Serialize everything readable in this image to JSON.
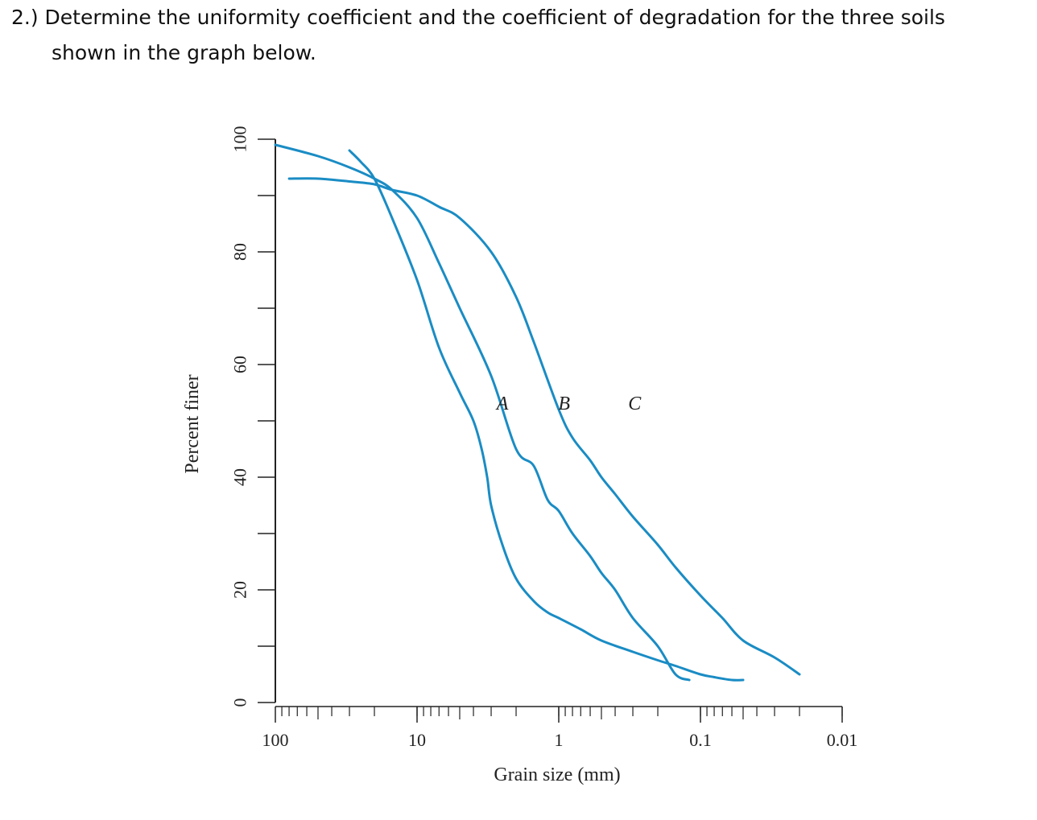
{
  "question": {
    "line1": "2.) Determine the uniformity coefficient and the coefficient of degradation for the three soils",
    "line2": "shown in the graph below."
  },
  "chart_data": {
    "type": "line",
    "title": "",
    "xlabel": "Grain size (mm)",
    "ylabel": "Percent finer",
    "x_scale": "log",
    "x_direction": "decreasing",
    "xlim": [
      100,
      0.01
    ],
    "ylim": [
      0,
      100
    ],
    "x_ticks": [
      "100",
      "10",
      "1",
      "0.1",
      "0.01"
    ],
    "y_ticks": [
      "0",
      "20",
      "40",
      "60",
      "80",
      "100"
    ],
    "grid": false,
    "line_color": "#1a8cc4",
    "series": [
      {
        "name": "A",
        "x": [
          30,
          25,
          20,
          15,
          10,
          7,
          5,
          4,
          3.5,
          3.2,
          3,
          2.5,
          2,
          1.5,
          1.2,
          1,
          0.7,
          0.5,
          0.3,
          0.2,
          0.15,
          0.1,
          0.08,
          0.06,
          0.05
        ],
        "y": [
          98,
          96,
          93,
          86,
          75,
          63,
          55,
          50,
          45,
          40,
          35,
          28,
          22,
          18,
          16,
          15,
          13,
          11,
          9,
          7.5,
          6.5,
          5,
          4.5,
          4,
          4
        ]
      },
      {
        "name": "B",
        "x": [
          100,
          50,
          30,
          20,
          15,
          10,
          7,
          5,
          3,
          2,
          1.5,
          1.2,
          1,
          0.8,
          0.6,
          0.5,
          0.4,
          0.3,
          0.2,
          0.15,
          0.12
        ],
        "y": [
          99,
          97,
          95,
          93,
          91,
          86,
          78,
          70,
          58,
          45,
          42,
          36,
          34,
          30,
          26,
          23,
          20,
          15,
          10,
          5,
          4
        ]
      },
      {
        "name": "C",
        "x": [
          80,
          50,
          30,
          20,
          15,
          10,
          7,
          5,
          3,
          2,
          1.5,
          1,
          0.8,
          0.6,
          0.5,
          0.4,
          0.3,
          0.2,
          0.15,
          0.1,
          0.07,
          0.05,
          0.03,
          0.02
        ],
        "y": [
          93,
          93,
          92.5,
          92,
          91,
          90,
          88,
          86,
          80,
          72,
          64,
          52,
          47,
          43,
          40,
          37,
          33,
          28,
          24,
          19,
          15,
          11,
          8,
          5
        ]
      }
    ]
  }
}
